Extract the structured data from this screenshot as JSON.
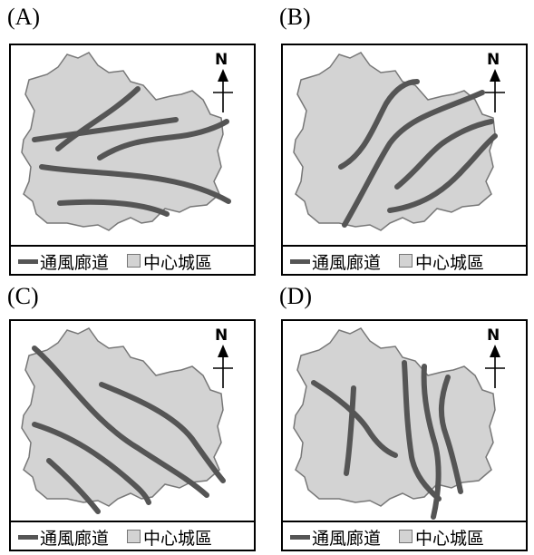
{
  "panels": [
    {
      "label": "(A)",
      "north": "N",
      "legend_corridor": "通風廊道",
      "legend_center": "中心城區"
    },
    {
      "label": "(B)",
      "north": "N",
      "legend_corridor": "通風廊道",
      "legend_center": "中心城區"
    },
    {
      "label": "(C)",
      "north": "N",
      "legend_corridor": "通風廊道",
      "legend_center": "中心城區"
    },
    {
      "label": "(D)",
      "north": "N",
      "legend_corridor": "通風廊道",
      "legend_center": "中心城區"
    }
  ],
  "colors": {
    "city_fill": "#d3d3d3",
    "city_stroke": "#777777",
    "corridor": "#555555",
    "frame": "#000000"
  }
}
